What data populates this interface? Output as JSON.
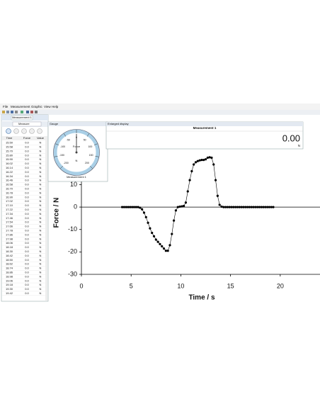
{
  "menu": [
    "File",
    "Measurement",
    "Graphic",
    "View",
    "Help"
  ],
  "left_panel": {
    "tab": "Measurement 1",
    "mode": "Measure",
    "headers": [
      "Time",
      "Force",
      "Value"
    ],
    "rows": [
      [
        "15.50",
        "0.0",
        "N"
      ],
      [
        "15.58",
        "0.0",
        "N"
      ],
      [
        "15.70",
        "0.0",
        "N"
      ],
      [
        "15.80",
        "0.0",
        "N"
      ],
      [
        "15.90",
        "0.0",
        "N"
      ],
      [
        "16.02",
        "0.0",
        "N"
      ],
      [
        "16.14",
        "0.0",
        "N"
      ],
      [
        "16.22",
        "0.0",
        "N"
      ],
      [
        "16.34",
        "0.0",
        "N"
      ],
      [
        "16.46",
        "0.0",
        "N"
      ],
      [
        "16.58",
        "0.0",
        "N"
      ],
      [
        "16.70",
        "0.0",
        "N"
      ],
      [
        "16.78",
        "0.0",
        "N"
      ],
      [
        "16.90",
        "0.0",
        "N"
      ],
      [
        "17.02",
        "0.0",
        "N"
      ],
      [
        "17.10",
        "0.0",
        "N"
      ],
      [
        "17.22",
        "0.0",
        "N"
      ],
      [
        "17.34",
        "0.0",
        "N"
      ],
      [
        "17.46",
        "0.0",
        "N"
      ],
      [
        "17.54",
        "0.0",
        "N"
      ],
      [
        "17.66",
        "0.0",
        "N"
      ],
      [
        "17.78",
        "0.0",
        "N"
      ],
      [
        "17.86",
        "0.0",
        "N"
      ],
      [
        "17.98",
        "0.0",
        "N"
      ],
      [
        "18.06",
        "0.0",
        "N"
      ],
      [
        "18.18",
        "0.0",
        "N"
      ],
      [
        "18.30",
        "0.0",
        "N"
      ],
      [
        "18.42",
        "0.0",
        "N"
      ],
      [
        "18.50",
        "0.0",
        "N"
      ],
      [
        "18.62",
        "0.0",
        "N"
      ],
      [
        "18.74",
        "0.0",
        "N"
      ],
      [
        "18.86",
        "0.0",
        "N"
      ],
      [
        "18.98",
        "0.0",
        "N"
      ],
      [
        "19.06",
        "0.0",
        "N"
      ],
      [
        "19.18",
        "0.0",
        "N"
      ],
      [
        "19.30",
        "0.0",
        "N"
      ],
      [
        "19.42",
        "0.0",
        "N"
      ]
    ]
  },
  "gauge": {
    "title": "Gauge",
    "label": "Force",
    "unit": "N",
    "caption": "Measurement 1",
    "range": [
      -200,
      200
    ],
    "ticks": [
      -200,
      -150,
      -100,
      -50,
      0,
      50,
      100,
      150,
      200
    ],
    "value": 0
  },
  "display": {
    "title": "Enlarged display",
    "name": "Measurement 1",
    "value": "0.00",
    "unit": "N"
  },
  "chart_data": {
    "type": "scatter",
    "x_label": "Time / s",
    "y_label": "Force / N",
    "color": "#000000",
    "x": [
      4.1,
      4.3,
      4.5,
      4.7,
      4.9,
      5.1,
      5.3,
      5.5,
      5.7,
      5.9,
      6.1,
      6.3,
      6.5,
      6.7,
      6.9,
      7.1,
      7.3,
      7.5,
      7.7,
      7.9,
      8.1,
      8.3,
      8.5,
      8.7,
      8.9,
      9.1,
      9.3,
      9.5,
      9.7,
      9.9,
      10.1,
      10.3,
      10.5,
      10.7,
      10.9,
      11.1,
      11.3,
      11.5,
      11.7,
      11.9,
      12.1,
      12.3,
      12.5,
      12.7,
      12.9,
      13.1,
      13.3,
      13.5,
      13.7,
      13.9,
      14.1,
      14.3,
      14.5,
      14.7,
      14.9,
      15.1,
      15.3,
      15.5,
      15.7,
      15.9,
      16.1,
      16.3,
      16.5,
      16.7,
      16.9,
      17.1,
      17.3,
      17.5,
      17.7,
      17.9,
      18.1,
      18.3,
      18.5,
      18.7,
      18.9,
      19.1,
      19.3
    ],
    "values": [
      0,
      0,
      0,
      0,
      0,
      0,
      0,
      0,
      0,
      -0.3,
      -1,
      -2.5,
      -4.5,
      -7,
      -9.5,
      -11.5,
      -13,
      -14.5,
      -15.5,
      -16.5,
      -17.5,
      -18.5,
      -19.5,
      -19.5,
      -17,
      -12,
      -6,
      -1.5,
      0,
      0.2,
      0.3,
      0.5,
      2,
      7,
      12,
      16,
      19,
      20,
      20.5,
      20.8,
      21,
      21,
      21.3,
      22,
      22.2,
      22,
      19,
      12,
      5,
      1,
      0.2,
      0,
      0,
      0,
      0,
      0,
      0,
      0,
      0,
      0,
      0,
      0,
      0,
      0,
      0,
      0,
      0,
      0,
      0,
      0,
      0,
      0,
      0,
      0,
      0,
      0,
      0
    ],
    "xlim": [
      0,
      24
    ],
    "ylim": [
      -30,
      25
    ],
    "xticks": [
      0,
      5,
      10,
      15,
      20
    ],
    "yticks": [
      -30,
      -20,
      -10,
      0,
      10
    ],
    "zero_line": true
  }
}
